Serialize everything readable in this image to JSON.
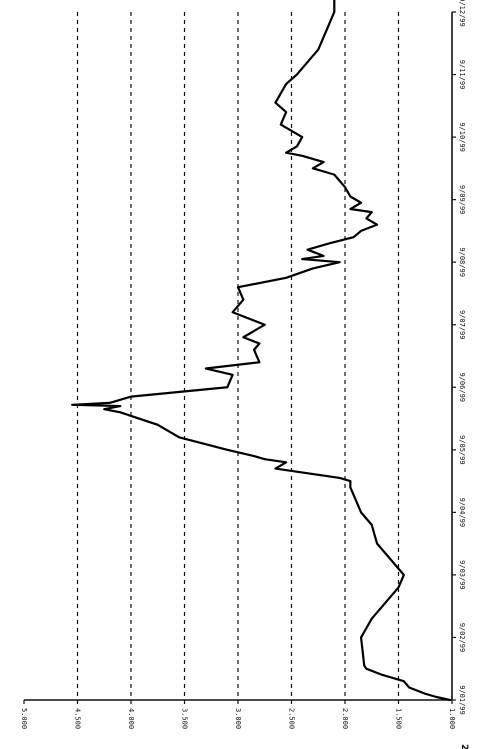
{
  "corner_mark": "2",
  "chart_data": {
    "type": "line",
    "orientation": "rotated 90 degrees clockwise",
    "grid": "horizontal dashed",
    "ylim": [
      1.0,
      5.0
    ],
    "y_ticks": [
      "1.000",
      "1.500",
      "2.000",
      "2.500",
      "3.000",
      "3.500",
      "4.000",
      "4.500",
      "5.000"
    ],
    "x_ticks": [
      "9/01/99",
      "9/02/99",
      "9/03/99",
      "9/04/99",
      "9/05/99",
      "9/06/99",
      "9/07/99",
      "9/08/99",
      "9/09/99",
      "9/10/99",
      "9/11/99",
      "9/12/99"
    ],
    "series": [
      {
        "values": [
          [
            0.0,
            1.02
          ],
          [
            0.05,
            1.15
          ],
          [
            0.1,
            1.25
          ],
          [
            0.2,
            1.4
          ],
          [
            0.3,
            1.45
          ],
          [
            0.4,
            1.65
          ],
          [
            0.5,
            1.8
          ],
          [
            0.55,
            1.82
          ],
          [
            1.0,
            1.85
          ],
          [
            1.3,
            1.75
          ],
          [
            1.6,
            1.6
          ],
          [
            1.8,
            1.5
          ],
          [
            2.0,
            1.45
          ],
          [
            2.2,
            1.55
          ],
          [
            2.5,
            1.7
          ],
          [
            2.8,
            1.75
          ],
          [
            3.0,
            1.85
          ],
          [
            3.2,
            1.9
          ],
          [
            3.4,
            1.95
          ],
          [
            3.5,
            1.95
          ],
          [
            3.55,
            2.05
          ],
          [
            3.7,
            2.65
          ],
          [
            3.8,
            2.55
          ],
          [
            3.85,
            2.75
          ],
          [
            3.9,
            2.85
          ],
          [
            4.0,
            3.1
          ],
          [
            4.2,
            3.55
          ],
          [
            4.4,
            3.75
          ],
          [
            4.6,
            4.1
          ],
          [
            4.65,
            4.25
          ],
          [
            4.7,
            4.1
          ],
          [
            4.72,
            4.55
          ],
          [
            4.75,
            4.2
          ],
          [
            4.85,
            4.0
          ],
          [
            5.0,
            3.1
          ],
          [
            5.2,
            3.05
          ],
          [
            5.3,
            3.3
          ],
          [
            5.4,
            2.8
          ],
          [
            5.6,
            2.85
          ],
          [
            5.7,
            2.8
          ],
          [
            5.8,
            2.95
          ],
          [
            6.0,
            2.75
          ],
          [
            6.2,
            3.05
          ],
          [
            6.4,
            2.95
          ],
          [
            6.6,
            3.0
          ],
          [
            6.75,
            2.55
          ],
          [
            6.9,
            2.3
          ],
          [
            7.0,
            2.05
          ],
          [
            7.05,
            2.4
          ],
          [
            7.1,
            2.2
          ],
          [
            7.2,
            2.35
          ],
          [
            7.3,
            2.15
          ],
          [
            7.4,
            1.92
          ],
          [
            7.5,
            1.85
          ],
          [
            7.6,
            1.7
          ],
          [
            7.7,
            1.8
          ],
          [
            7.8,
            1.75
          ],
          [
            7.85,
            1.95
          ],
          [
            7.95,
            1.85
          ],
          [
            8.05,
            1.95
          ],
          [
            8.2,
            2.0
          ],
          [
            8.4,
            2.1
          ],
          [
            8.5,
            2.3
          ],
          [
            8.6,
            2.2
          ],
          [
            8.7,
            2.4
          ],
          [
            8.75,
            2.55
          ],
          [
            8.85,
            2.45
          ],
          [
            9.0,
            2.4
          ],
          [
            9.2,
            2.6
          ],
          [
            9.4,
            2.55
          ],
          [
            9.55,
            2.65
          ],
          [
            9.7,
            2.6
          ],
          [
            9.85,
            2.55
          ],
          [
            10.0,
            2.45
          ],
          [
            10.2,
            2.35
          ],
          [
            10.4,
            2.25
          ],
          [
            10.6,
            2.2
          ],
          [
            10.8,
            2.15
          ],
          [
            11.0,
            2.1
          ],
          [
            11.2,
            2.1
          ],
          [
            11.4,
            2.05
          ],
          [
            11.6,
            2.15
          ],
          [
            11.8,
            2.25
          ],
          [
            11.95,
            2.3
          ]
        ]
      }
    ]
  }
}
